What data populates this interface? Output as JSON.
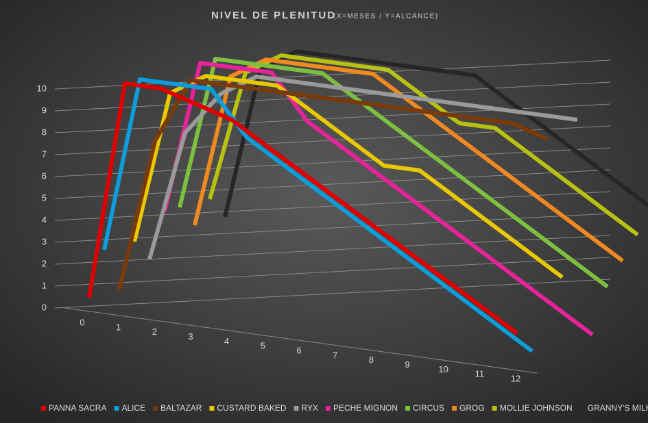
{
  "chart_data": {
    "type": "line3d",
    "title": "NIVEL DE PLENITUD",
    "subtitle": "(X=MESES / Y=ALCANCE)",
    "x": [
      0,
      1,
      2,
      3,
      4,
      5,
      6,
      7,
      8,
      9,
      10,
      11,
      12
    ],
    "ylim": [
      0,
      10
    ],
    "yticks": [
      0,
      1,
      2,
      3,
      4,
      5,
      6,
      7,
      8,
      9,
      10
    ],
    "grid": true,
    "legend": "bottom",
    "series": [
      {
        "name": "PANNA SACRA",
        "color": "#e00000",
        "values": [
          0,
          10,
          10,
          9.5,
          9,
          8,
          7,
          6,
          5,
          4,
          3,
          2,
          1
        ]
      },
      {
        "name": "ALICE",
        "color": "#0d9ddb",
        "values": [
          2,
          10,
          10,
          10,
          8,
          7,
          6,
          5,
          4,
          3,
          2,
          1,
          0
        ]
      },
      {
        "name": "BALTAZAR",
        "color": "#7a3a0a",
        "values": [
          0,
          7,
          10,
          10,
          10,
          10,
          10,
          10,
          10,
          10,
          10,
          10,
          9.5
        ]
      },
      {
        "name": "CUSTARD BAKED",
        "color": "#e8c800",
        "values": [
          2,
          9,
          10,
          10,
          10,
          9,
          8,
          7,
          7,
          6,
          5,
          4,
          3
        ]
      },
      {
        "name": "RYX",
        "color": "#9a9a9a",
        "values": [
          1,
          7,
          9,
          10,
          10,
          10,
          10,
          10,
          10,
          10,
          10,
          10,
          10
        ]
      },
      {
        "name": "PECHE MIGNON",
        "color": "#e8239a",
        "values": [
          3,
          10,
          10,
          10,
          8,
          7,
          6,
          5,
          4,
          3,
          2,
          1,
          0
        ]
      },
      {
        "name": "CIRCUS",
        "color": "#7cc040",
        "values": [
          3,
          10,
          10,
          10,
          10,
          9,
          8,
          7,
          6,
          5,
          4,
          3,
          2
        ]
      },
      {
        "name": "GROG",
        "color": "#f08a20",
        "values": [
          2,
          9,
          10,
          10,
          10,
          10,
          9,
          8,
          7,
          6,
          5,
          4,
          3
        ]
      },
      {
        "name": "MOLLIE JOHNSON",
        "color": "#b8c010",
        "values": [
          3,
          9,
          10,
          10,
          10,
          10,
          9,
          8,
          8,
          7,
          6,
          5,
          4
        ]
      },
      {
        "name": "GRANNY'S MILK",
        "color": "#262626",
        "values": [
          2,
          9,
          10,
          10,
          10,
          10,
          10,
          10,
          9,
          8,
          7,
          6,
          5
        ]
      }
    ]
  }
}
